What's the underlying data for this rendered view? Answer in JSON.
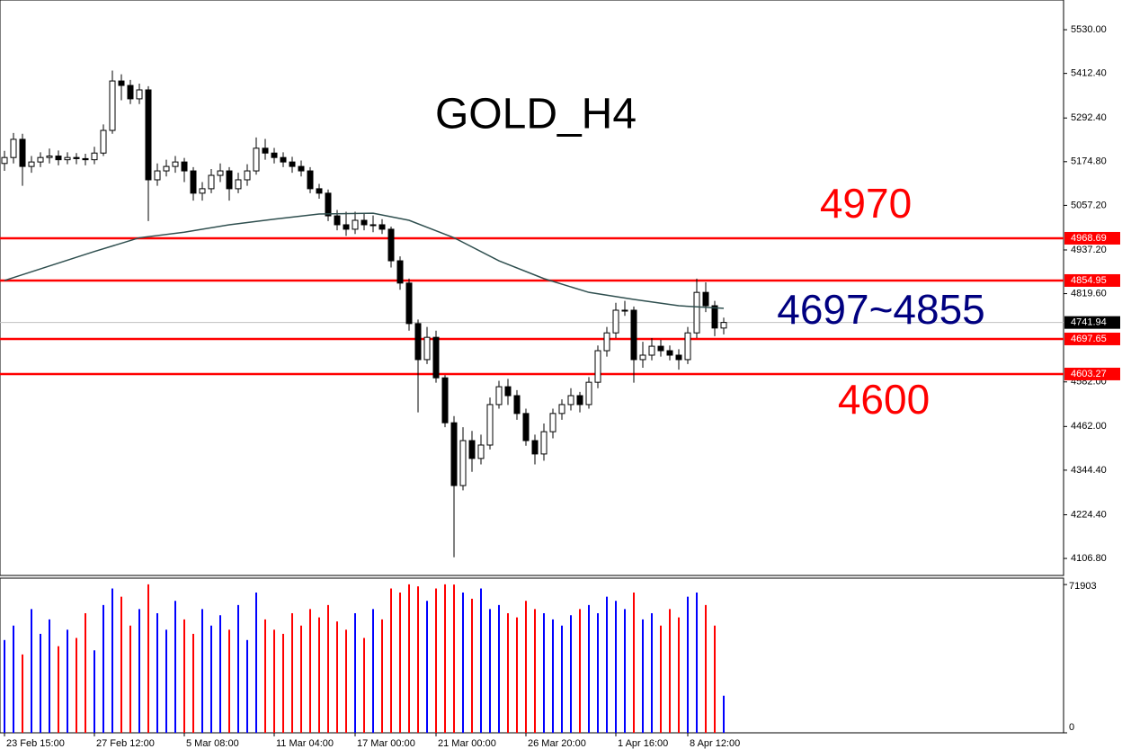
{
  "chart_data": {
    "type": "candlestick",
    "title": "GOLD_H4",
    "annotations": [
      {
        "text": "4970",
        "color": "#ff0000"
      },
      {
        "text": "4697~4855",
        "color": "#000080"
      },
      {
        "text": "4600",
        "color": "#ff0000"
      }
    ],
    "up_color": "#ffffff",
    "down_color": "#000000",
    "open": [
      5170,
      5186,
      5235,
      5162,
      5174,
      5186,
      5190,
      5180,
      5186,
      5183,
      5180,
      5198,
      5259,
      5392,
      5380,
      5344,
      5368,
      5126,
      5150,
      5162,
      5174,
      5150,
      5090,
      5102,
      5138,
      5150,
      5102,
      5126,
      5150,
      5211,
      5198,
      5186,
      5174,
      5162,
      5150,
      5102,
      5090,
      5029,
      5005,
      4993,
      5017,
      5005,
      5005,
      4993,
      4908,
      4848,
      4739,
      4642,
      4702,
      4593,
      4472,
      4303,
      4424,
      4376,
      4412,
      4521,
      4569,
      4545,
      4497,
      4424,
      4388,
      4448,
      4497,
      4521,
      4545,
      4521,
      4581,
      4666,
      4714,
      4775,
      4775,
      4642,
      4654,
      4678,
      4666,
      4654,
      4642,
      4714,
      4823,
      4787,
      4727
    ],
    "high": [
      5204,
      5252,
      5250,
      5190,
      5200,
      5210,
      5205,
      5200,
      5198,
      5196,
      5215,
      5275,
      5420,
      5410,
      5395,
      5385,
      5378,
      5170,
      5180,
      5190,
      5185,
      5160,
      5120,
      5155,
      5170,
      5160,
      5145,
      5168,
      5240,
      5236,
      5212,
      5200,
      5188,
      5178,
      5160,
      5115,
      5100,
      5045,
      5040,
      5040,
      5035,
      5030,
      5020,
      5000,
      4920,
      4860,
      4750,
      4730,
      4720,
      4600,
      4490,
      4460,
      4450,
      4440,
      4540,
      4585,
      4590,
      4560,
      4510,
      4440,
      4470,
      4510,
      4535,
      4565,
      4555,
      4595,
      4680,
      4730,
      4795,
      4800,
      4785,
      4690,
      4700,
      4695,
      4680,
      4670,
      4730,
      4860,
      4850,
      4800,
      4755
    ],
    "low": [
      5150,
      5170,
      5110,
      5145,
      5160,
      5170,
      5165,
      5168,
      5168,
      5165,
      5168,
      5190,
      5250,
      5340,
      5330,
      5330,
      5015,
      5110,
      5135,
      5145,
      5120,
      5070,
      5070,
      5090,
      5120,
      5070,
      5090,
      5110,
      5140,
      5180,
      5170,
      5160,
      5145,
      5135,
      5090,
      5075,
      5015,
      4990,
      4975,
      4980,
      4990,
      4985,
      4980,
      4890,
      4830,
      4720,
      4500,
      4630,
      4580,
      4460,
      4110,
      4290,
      4340,
      4360,
      4400,
      4510,
      4520,
      4480,
      4410,
      4360,
      4370,
      4430,
      4480,
      4505,
      4500,
      4510,
      4565,
      4650,
      4700,
      4760,
      4580,
      4620,
      4640,
      4650,
      4640,
      4615,
      4630,
      4700,
      4770,
      4705,
      4710
    ],
    "close": [
      5186,
      5235,
      5162,
      5174,
      5186,
      5190,
      5180,
      5186,
      5183,
      5180,
      5198,
      5259,
      5392,
      5380,
      5344,
      5368,
      5126,
      5150,
      5162,
      5174,
      5150,
      5090,
      5102,
      5138,
      5150,
      5102,
      5126,
      5150,
      5211,
      5198,
      5186,
      5174,
      5162,
      5150,
      5102,
      5090,
      5029,
      5005,
      4993,
      5017,
      5005,
      5005,
      4993,
      4908,
      4848,
      4739,
      4642,
      4702,
      4593,
      4472,
      4303,
      4424,
      4376,
      4412,
      4521,
      4569,
      4545,
      4497,
      4424,
      4388,
      4448,
      4497,
      4521,
      4545,
      4521,
      4581,
      4666,
      4714,
      4775,
      4775,
      4642,
      4654,
      4678,
      4666,
      4654,
      4642,
      4714,
      4823,
      4787,
      4727,
      4742
    ],
    "ma": {
      "color": "#2f4f4f",
      "x": [
        0,
        10,
        15,
        20,
        25,
        30,
        35,
        41,
        45,
        50,
        55,
        60,
        65,
        70,
        75,
        80
      ],
      "values": [
        4855,
        4933,
        4970,
        4985,
        5005,
        5020,
        5034,
        5036,
        5017,
        4970,
        4908,
        4860,
        4823,
        4804,
        4787,
        4780
      ]
    },
    "ylim": [
      4061,
      5610
    ],
    "yticks": [
      {
        "value": 5530,
        "label": "5530.00"
      },
      {
        "value": 5412.4,
        "label": "5412.40"
      },
      {
        "value": 5292.4,
        "label": "5292.40"
      },
      {
        "value": 5174.8,
        "label": "5174.80"
      },
      {
        "value": 5057.2,
        "label": "5057.20"
      },
      {
        "value": 4937.2,
        "label": "4937.20"
      },
      {
        "value": 4819.6,
        "label": "4819.60"
      },
      {
        "value": 4582,
        "label": "4582.00"
      },
      {
        "value": 4462,
        "label": "4462.00"
      },
      {
        "value": 4344.4,
        "label": "4344.40"
      },
      {
        "value": 4224.4,
        "label": "4224.40"
      },
      {
        "value": 4106.8,
        "label": "4106.80"
      }
    ],
    "levels": [
      4968.69,
      4854.95,
      4697.65,
      4603.27
    ],
    "level_color": "#ff0000",
    "current_price": 4741.94,
    "xlim": [
      -0.5,
      117.8
    ],
    "xticks": [
      {
        "value": 0,
        "label": "23 Feb 15:00"
      },
      {
        "value": 10,
        "label": "27 Feb 12:00"
      },
      {
        "value": 20,
        "label": "5 Mar 08:00"
      },
      {
        "value": 30,
        "label": "11 Mar 04:00"
      },
      {
        "value": 39,
        "label": "17 Mar 00:00"
      },
      {
        "value": 48,
        "label": "21 Mar 00:00"
      },
      {
        "value": 58,
        "label": "26 Mar 20:00"
      },
      {
        "value": 68,
        "label": "1 Apr 16:00"
      },
      {
        "value": 76,
        "label": "8 Apr 12:00"
      }
    ],
    "volume": {
      "up_color": "#0000ff",
      "down_color": "#ff0000",
      "ylim": [
        0,
        75000
      ],
      "yticks": [
        71903,
        0
      ],
      "values": [
        45000,
        52000,
        38000,
        60000,
        48000,
        55000,
        42000,
        50000,
        46000,
        58000,
        40000,
        62000,
        70000,
        66000,
        52000,
        60000,
        72000,
        58000,
        50000,
        64000,
        55000,
        48000,
        60000,
        52000,
        57000,
        50000,
        62000,
        45000,
        68000,
        55000,
        50000,
        48000,
        58000,
        52000,
        60000,
        56000,
        62000,
        54000,
        50000,
        58000,
        46000,
        60000,
        55000,
        70000,
        68000,
        72000,
        71000,
        64000,
        70000,
        72000,
        71903,
        68000,
        65000,
        70000,
        60000,
        62000,
        58000,
        56000,
        64000,
        60000,
        58000,
        55000,
        52000,
        57000,
        60000,
        62000,
        58000,
        66000,
        64000,
        60000,
        68000,
        55000,
        58000,
        52000,
        60000,
        56000,
        66000,
        68000,
        62000,
        52000,
        18000
      ]
    }
  }
}
